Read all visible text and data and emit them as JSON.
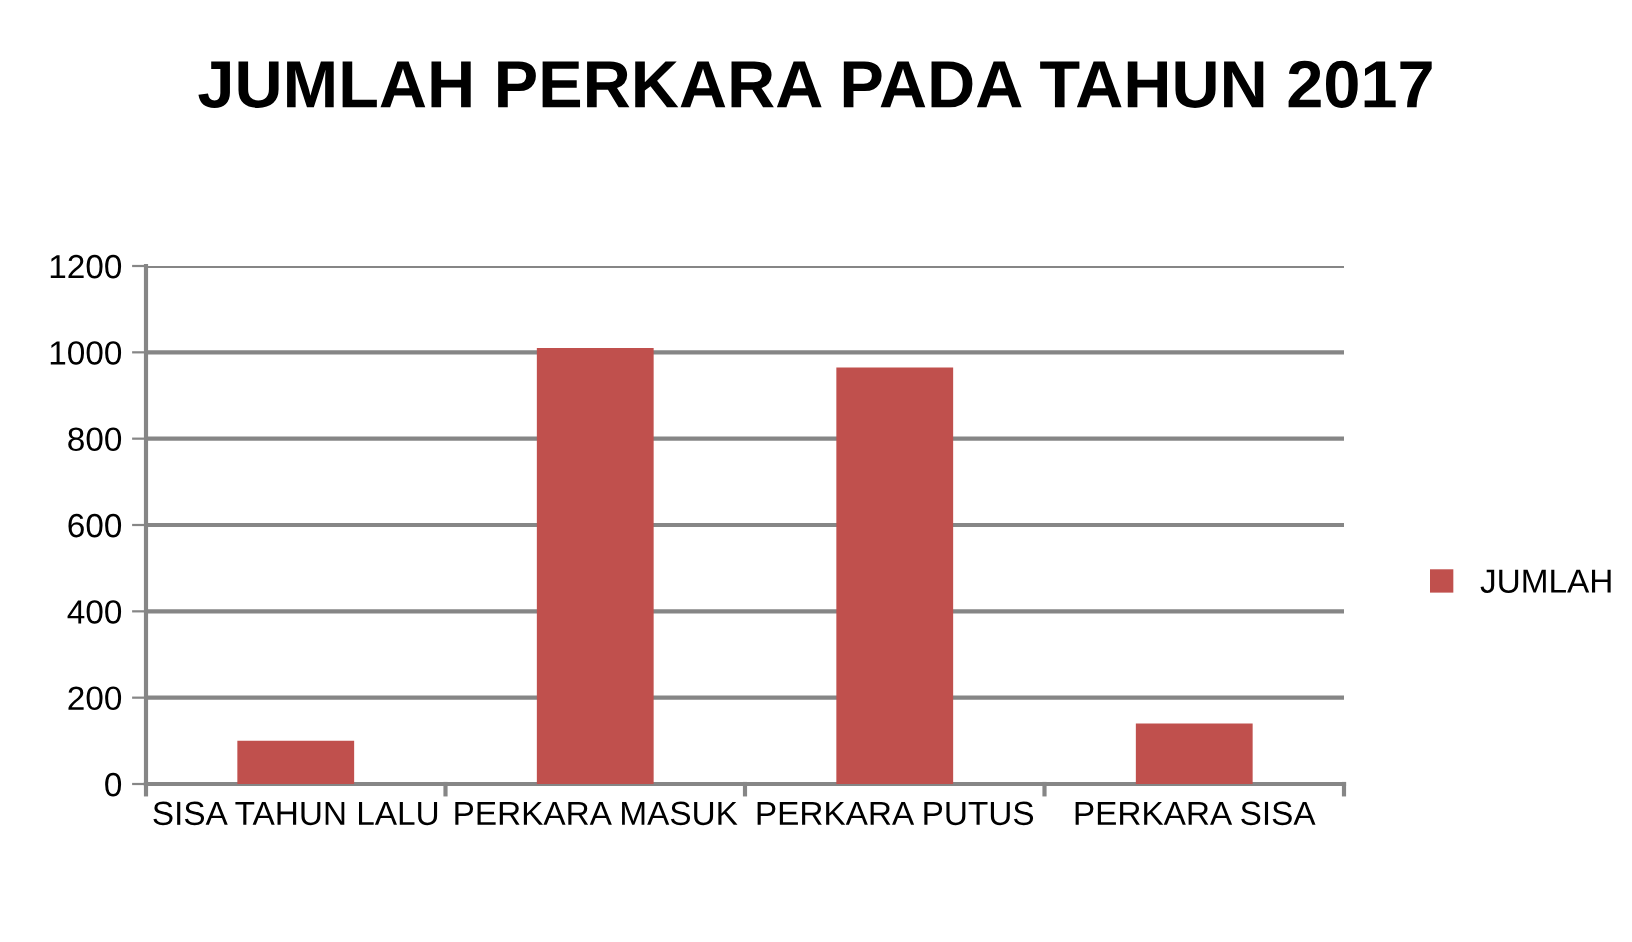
{
  "chart_data": {
    "type": "bar",
    "title": "JUMLAH PERKARA PADA TAHUN 2017",
    "categories": [
      "SISA TAHUN LALU",
      "PERKARA MASUK",
      "PERKARA PUTUS",
      "PERKARA SISA"
    ],
    "series": [
      {
        "name": "JUMLAH",
        "color": "#c0504d",
        "values": [
          100,
          1010,
          965,
          140
        ]
      }
    ],
    "ylim": [
      0,
      1200
    ],
    "yticks": [
      0,
      200,
      400,
      600,
      800,
      1000,
      1200
    ],
    "grid": "y",
    "legend": "right"
  }
}
